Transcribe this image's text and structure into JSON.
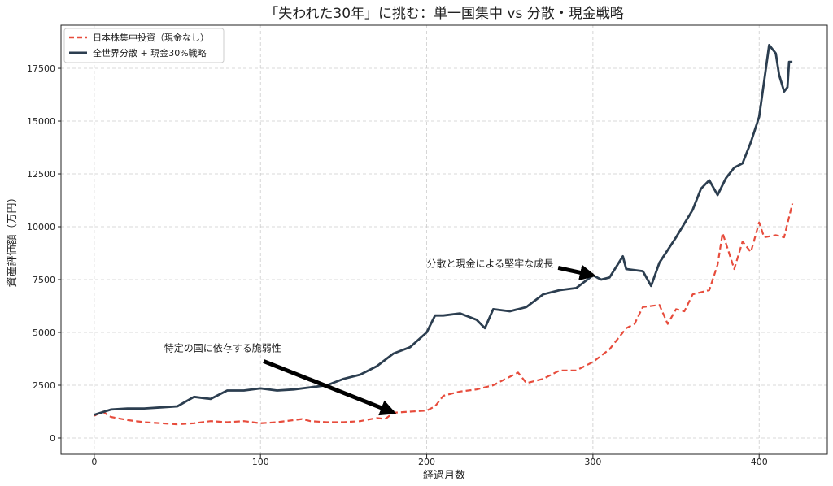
{
  "chart_data": {
    "type": "line",
    "title": "「失われた30年」に挑む：単一国集中 vs 分散・現金戦略",
    "xlabel": "経過月数",
    "ylabel": "資産評価額（万円）",
    "xlim": [
      -20,
      441
    ],
    "ylim": [
      -770,
      19540
    ],
    "xticks": [
      0,
      100,
      200,
      300,
      400
    ],
    "yticks": [
      0,
      2500,
      5000,
      7500,
      10000,
      12500,
      15000,
      17500
    ],
    "grid": true,
    "legend_position": "top-left",
    "series": [
      {
        "name": "日本株集中投資（現金なし）",
        "color": "#e74c3c",
        "style": "dashed",
        "x": [
          0,
          5,
          10,
          20,
          30,
          40,
          50,
          60,
          70,
          80,
          90,
          100,
          110,
          120,
          125,
          130,
          140,
          150,
          160,
          170,
          175,
          180,
          190,
          200,
          205,
          210,
          220,
          230,
          240,
          250,
          255,
          260,
          270,
          280,
          290,
          300,
          310,
          320,
          325,
          330,
          340,
          345,
          350,
          355,
          360,
          370,
          375,
          378,
          385,
          390,
          395,
          400,
          403,
          410,
          415,
          420
        ],
        "y": [
          1050,
          1250,
          1000,
          850,
          750,
          700,
          650,
          700,
          800,
          750,
          800,
          700,
          750,
          850,
          900,
          800,
          750,
          750,
          800,
          950,
          900,
          1200,
          1250,
          1300,
          1500,
          2000,
          2200,
          2300,
          2500,
          2900,
          3100,
          2600,
          2800,
          3200,
          3200,
          3600,
          4200,
          5200,
          5400,
          6200,
          6300,
          5400,
          6100,
          6000,
          6800,
          7000,
          8200,
          9700,
          8000,
          9300,
          8800,
          10200,
          9500,
          9600,
          9500,
          11100
        ]
      },
      {
        "name": "全世界分散 + 現金30%戦略",
        "color": "#2c3e50",
        "style": "solid",
        "x": [
          0,
          10,
          20,
          30,
          40,
          50,
          60,
          70,
          80,
          90,
          100,
          110,
          120,
          130,
          140,
          150,
          160,
          170,
          180,
          190,
          200,
          205,
          210,
          220,
          230,
          235,
          240,
          250,
          260,
          270,
          280,
          290,
          300,
          305,
          310,
          318,
          320,
          330,
          335,
          340,
          350,
          360,
          365,
          370,
          375,
          380,
          385,
          390,
          395,
          400,
          403,
          406,
          410,
          412,
          415,
          417,
          418,
          420
        ],
        "y": [
          1100,
          1350,
          1400,
          1400,
          1450,
          1500,
          1950,
          1850,
          2250,
          2250,
          2350,
          2250,
          2300,
          2400,
          2500,
          2800,
          3000,
          3400,
          4000,
          4300,
          5000,
          5800,
          5800,
          5900,
          5600,
          5200,
          6100,
          6000,
          6200,
          6800,
          7000,
          7100,
          7700,
          7500,
          7600,
          8600,
          8000,
          7900,
          7200,
          8300,
          9500,
          10800,
          11800,
          12200,
          11500,
          12300,
          12800,
          13000,
          14000,
          15200,
          16900,
          18600,
          18200,
          17200,
          16400,
          16600,
          17800,
          17800
        ]
      }
    ],
    "annotations": [
      {
        "text": "特定の国に依存する脆弱性",
        "xy": [
          180,
          1200
        ],
        "xytext": [
          42,
          4100
        ]
      },
      {
        "text": "分散と現金による堅牢な成長",
        "xy": [
          300,
          7700
        ],
        "xytext": [
          200,
          8100
        ]
      }
    ]
  }
}
